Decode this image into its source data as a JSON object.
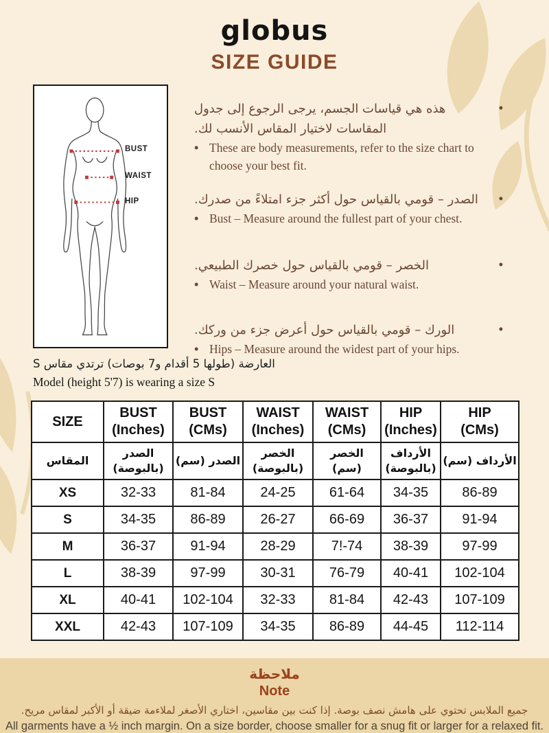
{
  "header": {
    "logo": "globus",
    "title": "SIZE GUIDE"
  },
  "colors": {
    "background": "#f9efdc",
    "accent_brown": "#8c4a2a",
    "note_band": "#ecd5a6",
    "leaf_decoration": "#ecd9b1",
    "measure_line_red": "#bf3a3c"
  },
  "figure": {
    "bust_label": "BUST",
    "waist_label": "WAIST",
    "hip_label": "HIP"
  },
  "intro": {
    "items": [
      {
        "ar": "هذه هي قياسات الجسم، يرجى الرجوع إلى جدول المقاسات لاختيار المقاس الأنسب لك.",
        "en": "These are body measurements, refer to the size chart to choose your best fit."
      },
      {
        "ar": "الصدر – قومي بالقياس حول أكثر جزء امتلاءً من صدرك.",
        "en": "Bust – Measure around the fullest part of your chest."
      },
      {
        "ar": "الخصر – قومي بالقياس حول خصرك الطبيعي.",
        "en": "Waist – Measure around your natural waist."
      },
      {
        "ar": "الورك – قومي بالقياس حول أعرض جزء من وركك.",
        "en": "Hips – Measure around the widest part of your hips."
      }
    ]
  },
  "model_note": {
    "ar": "العارضة (طولها 5 أقدام و7 بوصات) ترتدي مقاس S",
    "en": "Model (height 5'7) is wearing a size S"
  },
  "table": {
    "header_en": [
      "SIZE",
      "BUST\n(Inches)",
      "BUST\n(CMs)",
      "WAIST\n(Inches)",
      "WAIST\n(CMs)",
      "HIP\n(Inches)",
      "HIP\n(CMs)"
    ],
    "header_ar": [
      "المقاس",
      "الصدر\n(بالبوصة)",
      "الصدر (سم)",
      "الخصر\n(بالبوصة)",
      "الخصر (سم)",
      "الأرداف\n(بالبوصة)",
      "الأرداف (سم)"
    ],
    "rows": [
      [
        "XS",
        "32-33",
        "81-84",
        "24-25",
        "61-64",
        "34-35",
        "86-89"
      ],
      [
        "S",
        "34-35",
        "86-89",
        "26-27",
        "66-69",
        "36-37",
        "91-94"
      ],
      [
        "M",
        "36-37",
        "91-94",
        "28-29",
        "7!-74",
        "38-39",
        "97-99"
      ],
      [
        "L",
        "38-39",
        "97-99",
        "30-31",
        "76-79",
        "40-41",
        "102-104"
      ],
      [
        "XL",
        "40-41",
        "102-104",
        "32-33",
        "81-84",
        "42-43",
        "107-109"
      ],
      [
        "XXL",
        "42-43",
        "107-109",
        "34-35",
        "86-89",
        "44-45",
        "112-114"
      ]
    ]
  },
  "note": {
    "title_ar": "ملاحظة",
    "title_en": "Note",
    "body_ar": "جميع الملابس تحتوي على هامش نصف بوصة. إذا كنت بين مقاسين، اختاري الأصغر لملاءمة ضيقة أو الأكبر لمقاس مريح.",
    "body_en": "All garments have a ½ inch margin. On a size border, choose smaller for a snug fit or larger for a relaxed fit."
  }
}
